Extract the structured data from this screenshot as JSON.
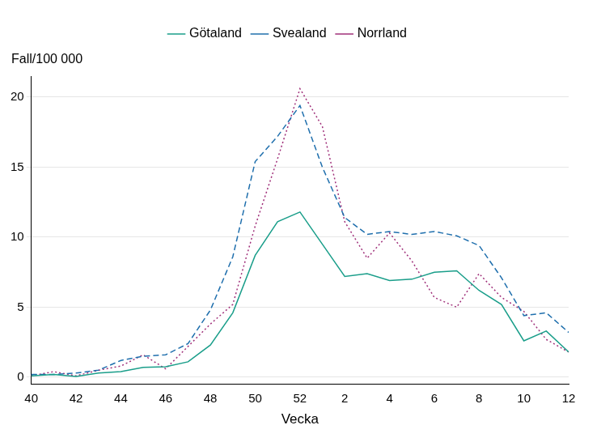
{
  "chart_data": {
    "type": "line",
    "x_label": "Vecka",
    "y_label": "Fall/100 000",
    "categories": [
      "40",
      null,
      "42",
      null,
      "44",
      null,
      "46",
      null,
      "48",
      null,
      "50",
      null,
      "52",
      null,
      "2",
      null,
      "4",
      null,
      "6",
      null,
      "8",
      null,
      "10",
      null,
      "12"
    ],
    "series": [
      {
        "name": "Götaland",
        "color": "#1a9e8a",
        "line_style": "solid",
        "values": [
          0.1,
          0.2,
          0.05,
          0.3,
          0.4,
          0.7,
          0.75,
          1.1,
          2.3,
          4.6,
          8.7,
          11.1,
          11.8,
          9.5,
          7.2,
          7.4,
          6.9,
          7.0,
          7.5,
          7.6,
          6.2,
          5.2,
          2.6,
          3.3,
          1.8
        ]
      },
      {
        "name": "Svealand",
        "color": "#1f6fad",
        "line_style": "dashed",
        "values": [
          0.2,
          0.2,
          0.3,
          0.5,
          1.2,
          1.5,
          1.6,
          2.4,
          4.8,
          8.6,
          15.4,
          17.2,
          19.4,
          15.0,
          11.4,
          10.2,
          10.4,
          10.2,
          10.4,
          10.1,
          9.4,
          7.1,
          4.4,
          4.6,
          3.2
        ]
      },
      {
        "name": "Norrland",
        "color": "#a0307a",
        "line_style": "dotted",
        "values": [
          0.1,
          0.4,
          0.1,
          0.5,
          0.8,
          1.6,
          0.6,
          2.2,
          3.8,
          5.2,
          10.8,
          15.6,
          20.6,
          17.9,
          11.1,
          8.5,
          10.3,
          8.3,
          5.7,
          5.0,
          7.4,
          5.7,
          4.7,
          2.7,
          1.8
        ]
      }
    ],
    "ylim": [
      -0.5,
      21.5
    ],
    "yticks": [
      0,
      5,
      10,
      15,
      20
    ],
    "grid": true,
    "legend": "top"
  }
}
